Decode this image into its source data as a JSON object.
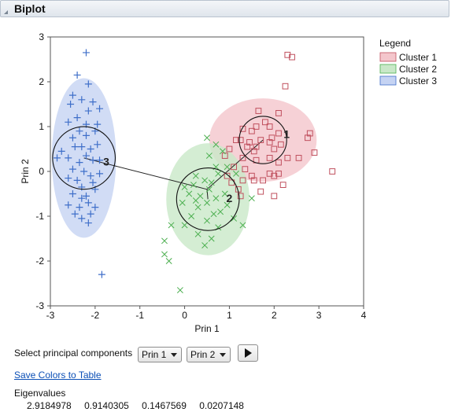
{
  "header": {
    "title": "Biplot"
  },
  "legend": {
    "title": "Legend",
    "items": [
      {
        "label": "Cluster 1",
        "fill": "#f4c6cc",
        "stroke": "#c0505e"
      },
      {
        "label": "Cluster 2",
        "fill": "#c9e8c8",
        "stroke": "#4caf50"
      },
      {
        "label": "Cluster 3",
        "fill": "#c5d3f3",
        "stroke": "#3f6fc9"
      }
    ]
  },
  "controls": {
    "select_label": "Select principal components",
    "x_component": "Prin 1",
    "y_component": "Prin 2"
  },
  "save_link": "Save Colors to Table",
  "eigen": {
    "label": "Eigenvalues",
    "values": [
      "2.9184978",
      "0.9140305",
      "0.1467569",
      "0.0207148"
    ]
  },
  "chart_data": {
    "type": "scatter",
    "xlabel": "Prin 1",
    "ylabel": "Prin 2",
    "xlim": [
      -3,
      4
    ],
    "ylim": [
      -3,
      3
    ],
    "xticks": [
      -3,
      -2,
      -1,
      0,
      1,
      2,
      3,
      4
    ],
    "yticks": [
      -3,
      -2,
      -1,
      0,
      1,
      2,
      3
    ],
    "centroid_anchor": [
      0.5,
      -0.4
    ],
    "clusters": [
      {
        "name": "Cluster 1",
        "label": "1",
        "marker": "square",
        "fill": "#f4c6cc",
        "stroke": "#c0505e",
        "center": [
          1.75,
          0.7
        ],
        "ellipse_radii": [
          1.2,
          0.93
        ],
        "circle_radius": 0.53,
        "label_pos": [
          2.28,
          0.83
        ],
        "points": [
          [
            2.3,
            2.6
          ],
          [
            2.4,
            2.55
          ],
          [
            2.25,
            1.9
          ],
          [
            1.65,
            1.35
          ],
          [
            2.1,
            1.3
          ],
          [
            1.9,
            1.0
          ],
          [
            1.8,
            1.1
          ],
          [
            1.6,
            1.0
          ],
          [
            1.5,
            0.9
          ],
          [
            1.3,
            0.95
          ],
          [
            1.25,
            0.7
          ],
          [
            1.4,
            0.55
          ],
          [
            1.55,
            0.45
          ],
          [
            1.7,
            0.7
          ],
          [
            1.9,
            0.65
          ],
          [
            2.0,
            0.5
          ],
          [
            2.1,
            0.85
          ],
          [
            2.15,
            0.6
          ],
          [
            2.3,
            0.3
          ],
          [
            2.55,
            0.3
          ],
          [
            2.8,
            0.85
          ],
          [
            2.75,
            0.75
          ],
          [
            2.9,
            0.42
          ],
          [
            3.3,
            0.0
          ],
          [
            1.9,
            -0.05
          ],
          [
            2.0,
            -0.1
          ],
          [
            1.6,
            0.25
          ],
          [
            1.3,
            0.3
          ],
          [
            1.1,
            0.1
          ],
          [
            1.75,
            -0.2
          ],
          [
            1.5,
            -0.1
          ],
          [
            1.55,
            -0.2
          ],
          [
            2.1,
            0.2
          ],
          [
            2.2,
            -0.3
          ],
          [
            1.7,
            -0.45
          ],
          [
            2.0,
            -0.55
          ],
          [
            1.3,
            -0.2
          ],
          [
            1.35,
            0.05
          ],
          [
            1.0,
            0.5
          ],
          [
            1.15,
            0.7
          ],
          [
            0.9,
            0.35
          ],
          [
            0.95,
            -0.1
          ],
          [
            1.05,
            -0.25
          ],
          [
            1.2,
            -0.4
          ],
          [
            1.25,
            -0.55
          ],
          [
            1.9,
            0.3
          ],
          [
            2.1,
            -0.05
          ],
          [
            1.6,
            0.55
          ],
          [
            1.45,
            0.65
          ],
          [
            1.95,
            0.75
          ]
        ]
      },
      {
        "name": "Cluster 2",
        "label": "2",
        "marker": "x",
        "fill": "#c9e8c8",
        "stroke": "#4caf50",
        "center": [
          0.52,
          -0.62
        ],
        "ellipse_radii": [
          0.93,
          1.25
        ],
        "circle_radius": 0.7,
        "label_pos": [
          1.0,
          -0.6
        ],
        "points": [
          [
            0.5,
            0.75
          ],
          [
            0.7,
            0.6
          ],
          [
            0.85,
            0.45
          ],
          [
            0.55,
            0.35
          ],
          [
            0.7,
            0.1
          ],
          [
            0.95,
            0.1
          ],
          [
            1.15,
            -0.05
          ],
          [
            0.75,
            -0.05
          ],
          [
            0.45,
            -0.2
          ],
          [
            0.2,
            -0.3
          ],
          [
            0.55,
            -0.4
          ],
          [
            0.7,
            -0.6
          ],
          [
            0.8,
            -0.9
          ],
          [
            0.3,
            -0.8
          ],
          [
            0.1,
            -0.5
          ],
          [
            0.0,
            -0.35
          ],
          [
            0.25,
            -0.1
          ],
          [
            0.5,
            -0.7
          ],
          [
            0.9,
            -0.5
          ],
          [
            0.35,
            -0.55
          ],
          [
            0.15,
            -1.0
          ],
          [
            0.5,
            -1.1
          ],
          [
            0.75,
            -1.25
          ],
          [
            1.1,
            -1.05
          ],
          [
            0.0,
            -1.2
          ],
          [
            0.3,
            -1.4
          ],
          [
            -0.3,
            -1.2
          ],
          [
            -0.45,
            -1.55
          ],
          [
            -0.45,
            -1.85
          ],
          [
            -0.35,
            -2.0
          ],
          [
            -0.1,
            -2.65
          ],
          [
            0.6,
            -1.5
          ],
          [
            1.3,
            -1.2
          ],
          [
            1.5,
            -0.6
          ],
          [
            0.45,
            -1.65
          ],
          [
            0.95,
            -0.75
          ],
          [
            0.6,
            -0.25
          ],
          [
            -0.05,
            -0.7
          ],
          [
            0.25,
            -0.65
          ],
          [
            0.65,
            -0.95
          ]
        ]
      },
      {
        "name": "Cluster 3",
        "label": "3",
        "marker": "plus",
        "fill": "#c5d3f3",
        "stroke": "#3f6fc9",
        "center": [
          -2.25,
          0.3
        ],
        "ellipse_radii": [
          0.72,
          1.78
        ],
        "circle_radius": 0.7,
        "label_pos": [
          -1.75,
          0.22
        ],
        "points": [
          [
            -2.2,
            2.65
          ],
          [
            -2.4,
            2.15
          ],
          [
            -2.15,
            1.95
          ],
          [
            -2.5,
            1.7
          ],
          [
            -2.3,
            1.6
          ],
          [
            -2.55,
            1.5
          ],
          [
            -2.05,
            1.55
          ],
          [
            -2.15,
            1.35
          ],
          [
            -1.9,
            1.4
          ],
          [
            -2.4,
            1.2
          ],
          [
            -2.2,
            1.05
          ],
          [
            -2.0,
            0.9
          ],
          [
            -2.35,
            0.9
          ],
          [
            -2.5,
            0.75
          ],
          [
            -2.3,
            0.55
          ],
          [
            -2.1,
            0.5
          ],
          [
            -1.95,
            0.6
          ],
          [
            -2.2,
            0.35
          ],
          [
            -2.05,
            0.25
          ],
          [
            -1.9,
            0.25
          ],
          [
            -2.35,
            0.2
          ],
          [
            -2.6,
            0.3
          ],
          [
            -2.75,
            0.45
          ],
          [
            -2.85,
            0.3
          ],
          [
            -2.5,
            0.05
          ],
          [
            -2.25,
            0.0
          ],
          [
            -2.1,
            -0.1
          ],
          [
            -1.9,
            -0.05
          ],
          [
            -2.4,
            -0.2
          ],
          [
            -2.6,
            -0.15
          ],
          [
            -2.3,
            -0.35
          ],
          [
            -2.0,
            -0.4
          ],
          [
            -2.2,
            -0.55
          ],
          [
            -2.5,
            -0.5
          ],
          [
            -2.15,
            -0.7
          ],
          [
            -2.35,
            -0.8
          ],
          [
            -2.6,
            -0.75
          ],
          [
            -2.45,
            -0.95
          ],
          [
            -2.3,
            -1.05
          ],
          [
            -2.15,
            -1.15
          ],
          [
            -2.1,
            -0.95
          ],
          [
            -2.0,
            -0.8
          ],
          [
            -1.85,
            -2.3
          ],
          [
            -2.2,
            0.8
          ],
          [
            -2.45,
            0.55
          ],
          [
            -1.95,
            1.05
          ],
          [
            -2.6,
            1.1
          ],
          [
            -2.3,
            -0.6
          ],
          [
            -2.05,
            -0.25
          ]
        ]
      }
    ]
  }
}
